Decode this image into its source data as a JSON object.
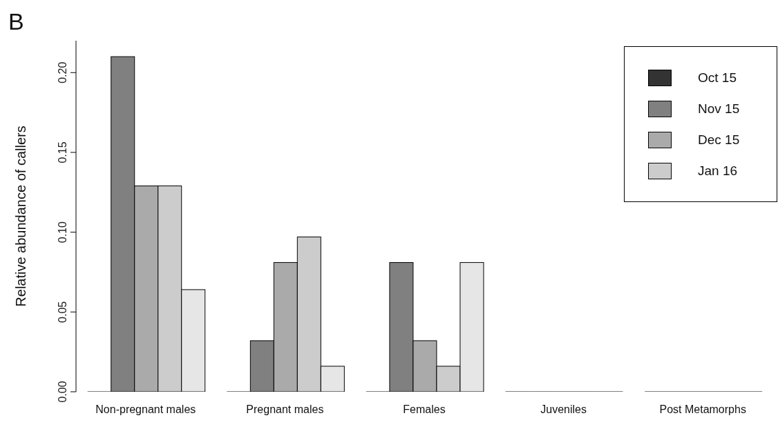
{
  "chart_data": {
    "type": "bar",
    "title": "B",
    "ylabel": "Relative abundance of callers",
    "categories": [
      "Non-pregnant males",
      "Pregnant males",
      "Females",
      "Juveniles",
      "Post Metamorphs"
    ],
    "series": [
      {
        "name": "Oct 15",
        "color": "#333333",
        "values": [
          0,
          0,
          0,
          0,
          0
        ]
      },
      {
        "name": "Nov 15",
        "color": "#808080",
        "values": [
          0.21,
          0.032,
          0.081,
          0,
          0
        ]
      },
      {
        "name": "Dec 15",
        "color": "#aaaaaa",
        "values": [
          0.129,
          0.081,
          0.032,
          0,
          0
        ]
      },
      {
        "name": "Jan 16",
        "color": "#cccccc",
        "values": [
          0.129,
          0.097,
          0.016,
          0,
          0
        ]
      },
      {
        "color": "#e6e6e6",
        "values": [
          0.064,
          0.016,
          0.081,
          0,
          0
        ]
      }
    ],
    "ylim": [
      0,
      0.22
    ],
    "yticks": [
      {
        "value": 0,
        "label": "0.00"
      },
      0.05,
      {
        "value": 0.1,
        "label": "0.10"
      },
      0.15,
      {
        "value": 0.2,
        "label": "0.20"
      }
    ],
    "grid": false,
    "legend": "top right"
  }
}
